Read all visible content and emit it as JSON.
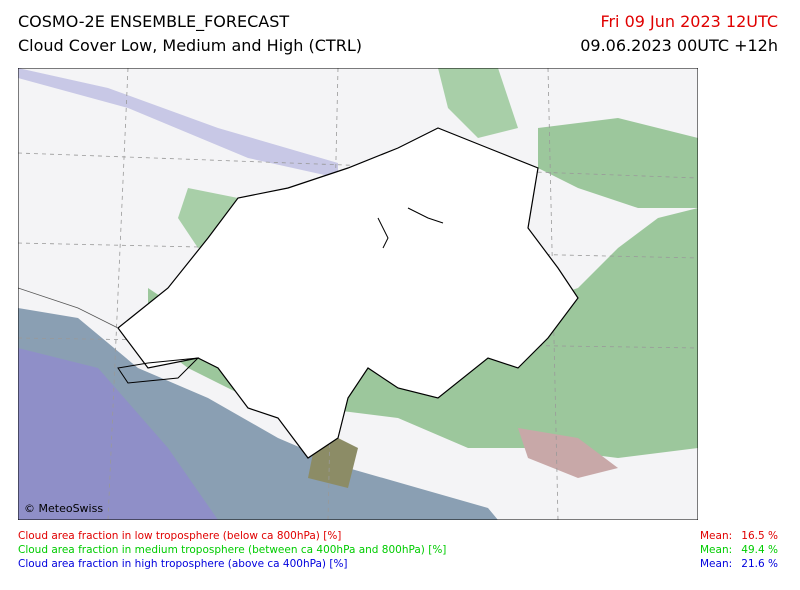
{
  "header": {
    "title": "COSMO-2E ENSEMBLE_FORECAST",
    "subtitle": "Cloud Cover Low, Medium and High (CTRL)",
    "valid_time": "Fri 09 Jun 2023 12UTC",
    "run_time": "09.06.2023 00UTC +12h"
  },
  "map": {
    "copyright": "© MeteoSwiss"
  },
  "legend": [
    {
      "text": "Cloud area fraction in low troposphere (below ca 800hPa) [%]",
      "mean_label": "Mean:",
      "mean": "16.5 %"
    },
    {
      "text": "Cloud area fraction in medium troposphere (between ca 400hPa and 800hPa) [%]",
      "mean_label": "Mean:",
      "mean": "49.4 %"
    },
    {
      "text": "Cloud area fraction in high troposphere (above ca 400hPa) [%]",
      "mean_label": "Mean:",
      "mean": "21.6 %"
    }
  ]
}
